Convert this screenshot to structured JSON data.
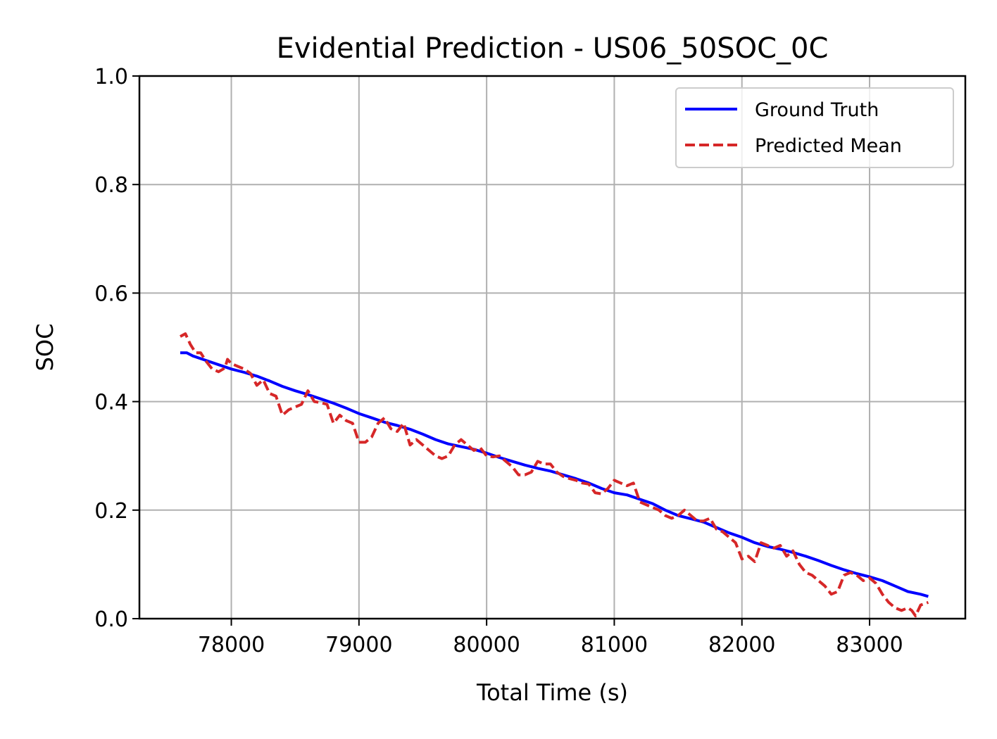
{
  "chart_data": {
    "type": "line",
    "title": "Evidential Prediction - US06_50SOC_0C",
    "xlabel": "Total Time (s)",
    "ylabel": "SOC",
    "xlim": [
      77280,
      83750
    ],
    "ylim": [
      0,
      1
    ],
    "xticks": [
      78000,
      79000,
      80000,
      81000,
      82000,
      83000
    ],
    "yticks": [
      0.0,
      0.2,
      0.4,
      0.6,
      0.8,
      1.0
    ],
    "xtick_labels": [
      "78000",
      "79000",
      "80000",
      "81000",
      "82000",
      "83000"
    ],
    "ytick_labels": [
      "0.0",
      "0.2",
      "0.4",
      "0.6",
      "0.8",
      "1.0"
    ],
    "grid": true,
    "legend_position": "upper right",
    "series": [
      {
        "name": "Ground Truth",
        "color": "#0000ff",
        "style": "solid",
        "x": [
          77600,
          77650,
          77700,
          77800,
          77900,
          78000,
          78100,
          78200,
          78300,
          78400,
          78500,
          78600,
          78700,
          78800,
          78900,
          79000,
          79100,
          79200,
          79300,
          79400,
          79500,
          79600,
          79700,
          79800,
          79900,
          80000,
          80100,
          80200,
          80300,
          80400,
          80500,
          80600,
          80700,
          80800,
          80900,
          81000,
          81100,
          81200,
          81300,
          81400,
          81500,
          81600,
          81700,
          81800,
          81900,
          82000,
          82100,
          82200,
          82300,
          82400,
          82500,
          82600,
          82700,
          82800,
          82900,
          83000,
          83100,
          83200,
          83300,
          83400,
          83460
        ],
        "y": [
          0.49,
          0.49,
          0.484,
          0.476,
          0.468,
          0.46,
          0.454,
          0.447,
          0.438,
          0.428,
          0.42,
          0.413,
          0.405,
          0.397,
          0.388,
          0.378,
          0.37,
          0.362,
          0.356,
          0.349,
          0.34,
          0.33,
          0.322,
          0.317,
          0.312,
          0.305,
          0.297,
          0.29,
          0.283,
          0.277,
          0.272,
          0.265,
          0.258,
          0.25,
          0.24,
          0.232,
          0.228,
          0.22,
          0.212,
          0.2,
          0.19,
          0.184,
          0.178,
          0.168,
          0.158,
          0.15,
          0.14,
          0.133,
          0.128,
          0.122,
          0.115,
          0.107,
          0.098,
          0.09,
          0.083,
          0.077,
          0.07,
          0.06,
          0.05,
          0.045,
          0.041
        ]
      },
      {
        "name": "Predicted Mean",
        "color": "#d62728",
        "style": "dashed",
        "x": [
          77600,
          77640,
          77680,
          77720,
          77760,
          77800,
          77850,
          77900,
          77950,
          77970,
          78000,
          78050,
          78100,
          78150,
          78200,
          78250,
          78300,
          78350,
          78400,
          78450,
          78500,
          78550,
          78600,
          78650,
          78700,
          78750,
          78800,
          78850,
          78900,
          78950,
          79000,
          79050,
          79100,
          79150,
          79200,
          79250,
          79300,
          79350,
          79400,
          79450,
          79500,
          79550,
          79600,
          79650,
          79700,
          79750,
          79800,
          79850,
          79900,
          79950,
          80000,
          80050,
          80100,
          80150,
          80200,
          80250,
          80300,
          80350,
          80400,
          80450,
          80500,
          80550,
          80600,
          80650,
          80700,
          80750,
          80800,
          80850,
          80900,
          80950,
          81000,
          81050,
          81100,
          81150,
          81200,
          81250,
          81300,
          81350,
          81400,
          81450,
          81500,
          81550,
          81600,
          81650,
          81700,
          81750,
          81800,
          81850,
          81900,
          81950,
          82000,
          82050,
          82100,
          82150,
          82200,
          82250,
          82300,
          82350,
          82400,
          82450,
          82500,
          82550,
          82600,
          82650,
          82700,
          82750,
          82800,
          82850,
          82900,
          82950,
          83000,
          83050,
          83100,
          83150,
          83200,
          83250,
          83300,
          83330,
          83360,
          83400,
          83460
        ],
        "y": [
          0.52,
          0.525,
          0.505,
          0.49,
          0.49,
          0.475,
          0.46,
          0.455,
          0.462,
          0.478,
          0.47,
          0.465,
          0.46,
          0.452,
          0.43,
          0.44,
          0.415,
          0.41,
          0.375,
          0.385,
          0.39,
          0.395,
          0.42,
          0.4,
          0.398,
          0.395,
          0.36,
          0.375,
          0.365,
          0.36,
          0.325,
          0.325,
          0.335,
          0.36,
          0.37,
          0.35,
          0.345,
          0.36,
          0.32,
          0.33,
          0.32,
          0.31,
          0.3,
          0.295,
          0.3,
          0.32,
          0.33,
          0.32,
          0.31,
          0.315,
          0.3,
          0.298,
          0.3,
          0.29,
          0.28,
          0.265,
          0.265,
          0.27,
          0.29,
          0.285,
          0.285,
          0.27,
          0.262,
          0.258,
          0.255,
          0.25,
          0.248,
          0.232,
          0.23,
          0.24,
          0.255,
          0.25,
          0.245,
          0.25,
          0.215,
          0.21,
          0.205,
          0.2,
          0.19,
          0.185,
          0.19,
          0.2,
          0.19,
          0.18,
          0.18,
          0.185,
          0.165,
          0.16,
          0.15,
          0.14,
          0.11,
          0.115,
          0.105,
          0.14,
          0.135,
          0.13,
          0.135,
          0.115,
          0.125,
          0.1,
          0.085,
          0.08,
          0.07,
          0.06,
          0.045,
          0.05,
          0.08,
          0.085,
          0.08,
          0.07,
          0.075,
          0.065,
          0.045,
          0.03,
          0.02,
          0.015,
          0.02,
          0.015,
          0.005,
          0.025,
          0.03
        ]
      }
    ]
  }
}
